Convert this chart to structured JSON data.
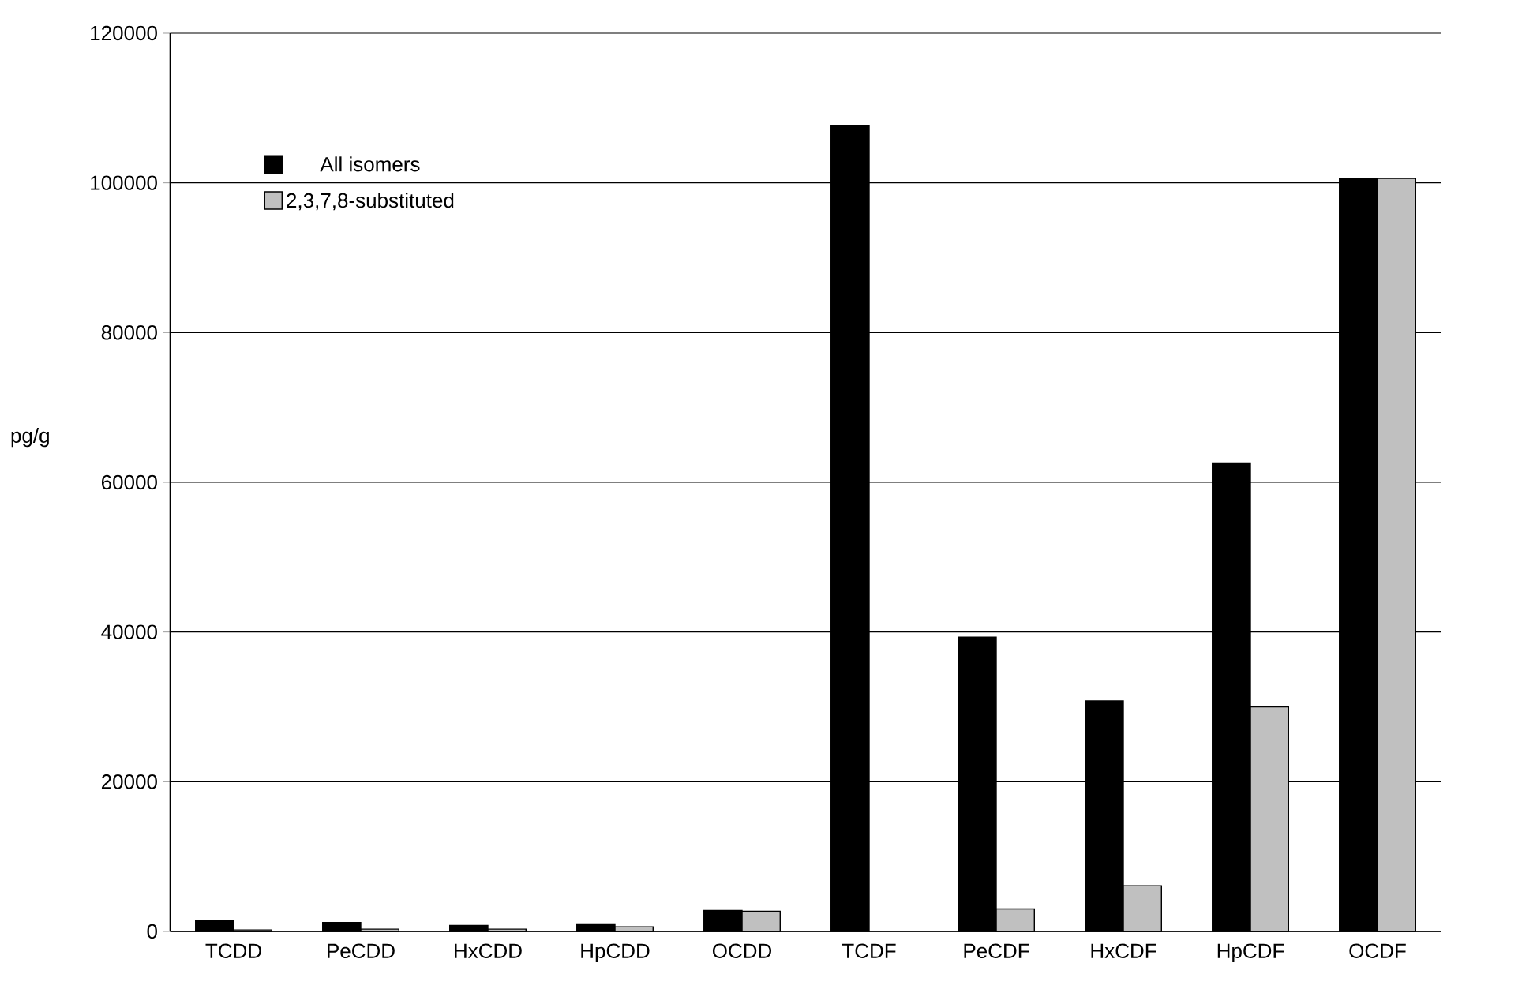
{
  "chart_data": {
    "type": "bar",
    "ylabel": "pg/g",
    "categories": [
      "TCDD",
      "PeCDD",
      "HxCDD",
      "HpCDD",
      "OCDD",
      "TCDF",
      "PeCDF",
      "HxCDF",
      "HpCDF",
      "OCDF"
    ],
    "series": [
      {
        "name": "All isomers",
        "color": "#000000",
        "values": [
          1500,
          1200,
          800,
          1000,
          2800,
          107700,
          39300,
          30800,
          62600,
          100600
        ]
      },
      {
        "name": "2,3,7,8-substituted",
        "color": "#c0c0c0",
        "values": [
          200,
          300,
          300,
          600,
          2700,
          null,
          3000,
          6100,
          30000,
          100600
        ]
      }
    ],
    "ylim": [
      0,
      120000
    ],
    "yticks": [
      0,
      20000,
      40000,
      60000,
      80000,
      100000,
      120000
    ],
    "grid": "y",
    "legend": "top left"
  }
}
